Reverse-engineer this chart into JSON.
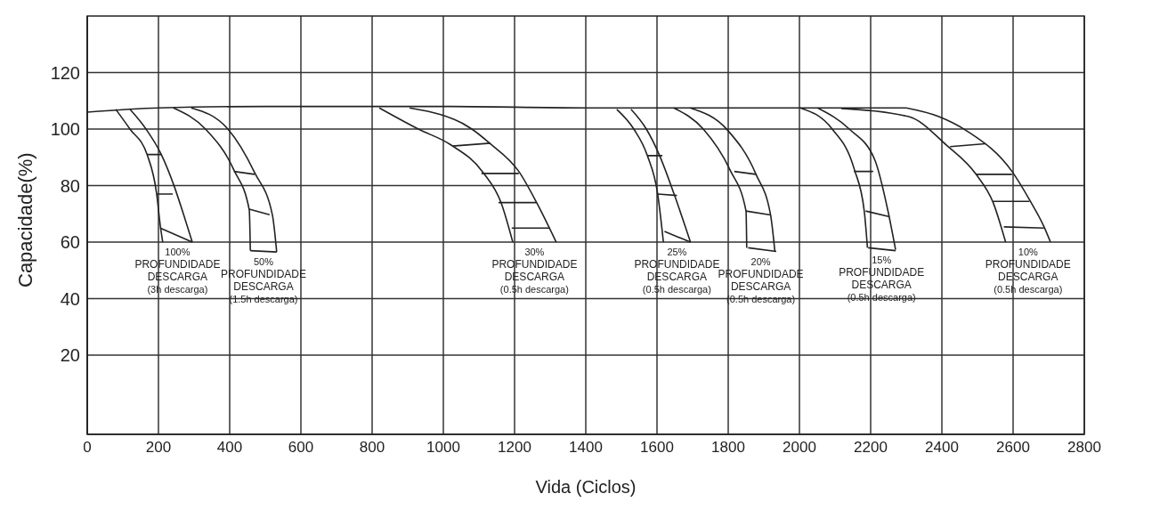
{
  "chart_data": {
    "type": "line",
    "xlabel": "Vida (Ciclos)",
    "ylabel": "Capacidade(%)",
    "xlim": [
      0,
      2800
    ],
    "xticks": [
      0,
      200,
      400,
      600,
      800,
      1000,
      1200,
      1400,
      1600,
      1800,
      2000,
      2200,
      2400,
      2600,
      2800
    ],
    "ylim": [
      -8,
      140
    ],
    "yticks": [
      20,
      40,
      60,
      80,
      100,
      120
    ],
    "grid": true,
    "marker": "none",
    "series": [
      {
        "color": "#222222",
        "x": [
          0,
          200,
          500,
          1000,
          1400,
          2000,
          2300
        ],
        "values": [
          106,
          107.5,
          108,
          108,
          107.5,
          107.5,
          107.5
        ]
      },
      {
        "color": "#222222",
        "x": [
          80,
          120,
          168,
          195,
          205,
          212
        ],
        "values": [
          107,
          100,
          91,
          77,
          66,
          60
        ]
      },
      {
        "color": "#222222",
        "x": [
          120,
          165,
          208,
          245,
          270,
          295
        ],
        "values": [
          107,
          100,
          91,
          79.5,
          70,
          60
        ]
      },
      {
        "color": "#222222",
        "x": [
          242,
          332,
          412,
          455,
          458
        ],
        "values": [
          107.5,
          100,
          85.5,
          71.4,
          57
        ]
      },
      {
        "color": "#222222",
        "x": [
          292,
          395,
          470,
          520,
          532
        ],
        "values": [
          107.5,
          100,
          84.6,
          69.6,
          56.5
        ]
      },
      {
        "color": "#222222",
        "x": [
          820,
          930,
          1020,
          1112,
          1162,
          1195
        ],
        "values": [
          107.5,
          100,
          94.5,
          84.6,
          74,
          60
        ]
      },
      {
        "color": "#222222",
        "x": [
          905,
          1080,
          1130,
          1212,
          1262,
          1317
        ],
        "values": [
          107.5,
          100,
          95,
          85,
          74,
          60
        ]
      },
      {
        "color": "#222222",
        "x": [
          1487,
          1535,
          1573,
          1602,
          1618
        ],
        "values": [
          107,
          100,
          90.6,
          77,
          60
        ]
      },
      {
        "color": "#222222",
        "x": [
          1527,
          1570,
          1606,
          1648,
          1694
        ],
        "values": [
          107,
          100,
          91,
          77,
          60
        ]
      },
      {
        "color": "#222222",
        "x": [
          1647,
          1730,
          1804,
          1850,
          1852
        ],
        "values": [
          107.5,
          100,
          85.8,
          71,
          58
        ]
      },
      {
        "color": "#222222",
        "x": [
          1693,
          1799,
          1878,
          1919,
          1931
        ],
        "values": [
          107.5,
          99.5,
          84,
          69.6,
          56.7
        ]
      },
      {
        "color": "#222222",
        "x": [
          2002,
          2092,
          2154,
          2182,
          2191
        ],
        "values": [
          107.5,
          100,
          85.8,
          71,
          58
        ]
      },
      {
        "color": "#222222",
        "x": [
          2051,
          2140,
          2212,
          2249,
          2270
        ],
        "values": [
          107.5,
          100,
          89,
          70.8,
          57.3
        ]
      },
      {
        "color": "#222222",
        "x": [
          2117,
          2307,
          2413,
          2496,
          2544,
          2579
        ],
        "values": [
          107.3,
          104.4,
          94.3,
          84,
          74,
          60
        ]
      },
      {
        "color": "#222222",
        "x": [
          2300,
          2390,
          2472,
          2597,
          2646,
          2687,
          2705
        ],
        "values": [
          107.5,
          104.5,
          99.2,
          85,
          75,
          65.4,
          60
        ]
      },
      {
        "color": "#222222",
        "x": [
          168,
          208,
          null,
          195,
          240,
          null,
          205,
          295,
          null,
          412,
          470,
          null,
          455,
          512,
          null,
          458,
          532,
          null,
          1025,
          1132,
          null,
          1107,
          1212,
          null,
          1155,
          1262,
          null,
          1192,
          1300,
          null,
          1573,
          1615,
          null,
          1602,
          1656,
          null,
          1621,
          1694,
          null,
          1817,
          1878,
          null,
          1850,
          1919,
          null,
          1856,
          1935,
          null,
          2153,
          2207,
          null,
          2186,
          2253,
          null,
          2193,
          2270,
          null,
          2423,
          2522,
          null,
          2496,
          2597,
          null,
          2544,
          2646,
          null,
          2574,
          2687
        ],
        "values": [
          91,
          91,
          null,
          77,
          77,
          null,
          65,
          60,
          null,
          85,
          84,
          null,
          71.7,
          69.7,
          null,
          57,
          56.5,
          null,
          94,
          95,
          null,
          84.3,
          84.3,
          null,
          74,
          74,
          null,
          65,
          65,
          null,
          90.6,
          90.6,
          null,
          77,
          76.5,
          null,
          63.8,
          60,
          null,
          85,
          84,
          null,
          71,
          69.6,
          null,
          58,
          56.7,
          null,
          85,
          85,
          null,
          71,
          69,
          null,
          58,
          57,
          null,
          93.8,
          94.8,
          null,
          84,
          84,
          null,
          74.4,
          74.4,
          null,
          65.4,
          65
        ]
      }
    ],
    "annotations": [
      "100%\nPROFUNDIDADE\nDESCARGA\n(3h descarga)",
      "50%\nPROFUNDIDADE\nDESCARGA\n(1.5h descarga)",
      "30%\nPROFUNDIDADE\nDESCARGA\n(0.5h descarga)",
      "25%\nPROFUNDIDADE\nDESCARGA\n(0.5h descarga)",
      "20%\nPROFUNDIDADE\nDESCARGA\n(0.5h descarga)",
      "15%\nPROFUNDIDADE\nDESCARGA\n(0.5h descarga)",
      "10%\nPROFUNDIDADE\nDESCARGA\n(0.5h descarga)"
    ]
  }
}
